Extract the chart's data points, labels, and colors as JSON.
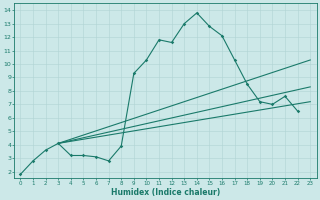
{
  "xlabel": "Humidex (Indice chaleur)",
  "bg_color": "#cce8e8",
  "line_color": "#1a7a6a",
  "grid_color": "#b0d4d4",
  "xlim": [
    -0.5,
    23.5
  ],
  "ylim": [
    1.5,
    14.5
  ],
  "xticks": [
    0,
    1,
    2,
    3,
    4,
    5,
    6,
    7,
    8,
    9,
    10,
    11,
    12,
    13,
    14,
    15,
    16,
    17,
    18,
    19,
    20,
    21,
    22,
    23
  ],
  "yticks": [
    2,
    3,
    4,
    5,
    6,
    7,
    8,
    9,
    10,
    11,
    12,
    13,
    14
  ],
  "jagged_x": [
    0,
    1,
    2,
    3,
    4,
    5,
    6,
    7,
    8,
    9,
    10,
    11,
    12,
    13,
    14,
    15,
    16,
    17,
    18,
    19,
    20,
    21,
    22
  ],
  "jagged_y": [
    1.8,
    2.8,
    3.6,
    4.1,
    3.2,
    3.2,
    3.1,
    2.8,
    3.9,
    9.3,
    10.3,
    11.8,
    11.6,
    13.0,
    13.8,
    12.8,
    12.1,
    10.3,
    8.5,
    7.2,
    7.0,
    7.6,
    6.5
  ],
  "fan_origin_x": 3.0,
  "fan_origin_y": 4.1,
  "fan_lines": [
    {
      "end_x": 23,
      "end_y": 10.3
    },
    {
      "end_x": 23,
      "end_y": 8.3
    },
    {
      "end_x": 23,
      "end_y": 7.2
    }
  ]
}
